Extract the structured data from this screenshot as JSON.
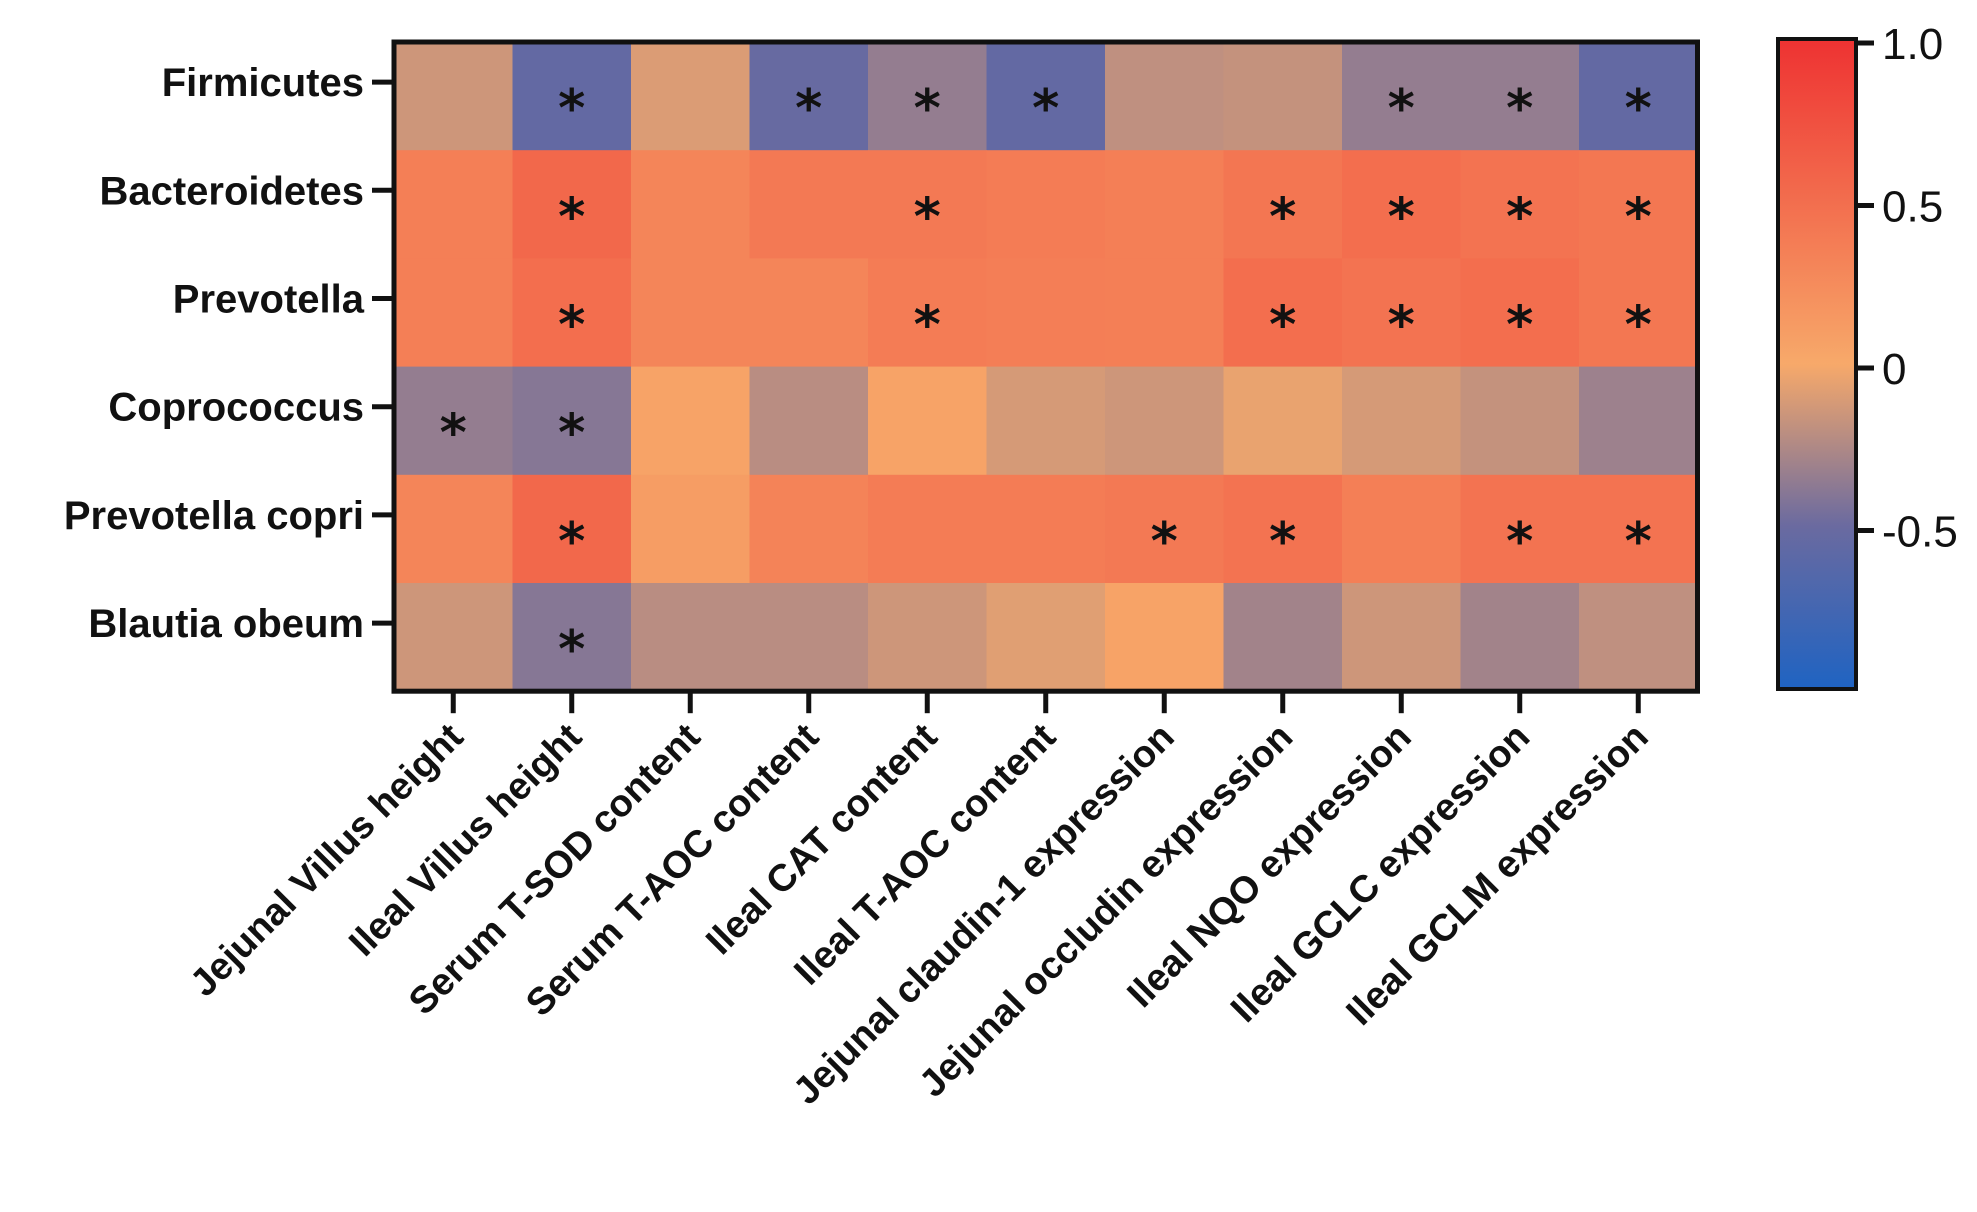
{
  "chart_data": {
    "type": "heatmap",
    "rows": [
      "Firmicutes",
      "Bacteroidetes",
      "Prevotella",
      "Coprococcus",
      "Prevotella copri",
      "Blautia obeum"
    ],
    "columns": [
      "Jejunal Villus height",
      "Ileal Villus height",
      "Serum T-SOD content",
      "Serum T-AOC content",
      "Ileal CAT content",
      "Ileal T-AOC content",
      "Jejunal claudin-1 expression",
      "Jejunal occludin expression",
      "Ileal NQO expression",
      "Ileal GCLC expression",
      "Ileal GCLM expression"
    ],
    "values": [
      [
        -0.15,
        -0.55,
        -0.1,
        -0.52,
        -0.35,
        -0.55,
        -0.2,
        -0.18,
        -0.35,
        -0.35,
        -0.55
      ],
      [
        0.35,
        0.55,
        0.3,
        0.4,
        0.4,
        0.38,
        0.35,
        0.43,
        0.5,
        0.45,
        0.42
      ],
      [
        0.35,
        0.5,
        0.3,
        0.3,
        0.38,
        0.36,
        0.35,
        0.5,
        0.45,
        0.5,
        0.42
      ],
      [
        -0.35,
        -0.4,
        0.05,
        -0.22,
        0.05,
        -0.12,
        -0.15,
        -0.05,
        -0.12,
        -0.18,
        -0.32
      ],
      [
        0.3,
        0.55,
        0.1,
        0.32,
        0.38,
        0.38,
        0.4,
        0.45,
        0.35,
        0.45,
        0.45
      ],
      [
        -0.15,
        -0.4,
        -0.22,
        -0.22,
        -0.15,
        -0.08,
        0.05,
        -0.3,
        -0.15,
        -0.3,
        -0.2
      ]
    ],
    "significant": [
      [
        false,
        true,
        false,
        true,
        true,
        true,
        false,
        false,
        true,
        true,
        true
      ],
      [
        false,
        true,
        false,
        false,
        true,
        false,
        false,
        true,
        true,
        true,
        true
      ],
      [
        false,
        true,
        false,
        false,
        true,
        false,
        false,
        true,
        true,
        true,
        true
      ],
      [
        true,
        true,
        false,
        false,
        false,
        false,
        false,
        false,
        false,
        false,
        false
      ],
      [
        false,
        true,
        false,
        false,
        false,
        false,
        true,
        true,
        false,
        true,
        true
      ],
      [
        false,
        true,
        false,
        false,
        false,
        false,
        false,
        false,
        false,
        false,
        false
      ]
    ],
    "significance_marker": "*",
    "colorbar": {
      "min": -1.0,
      "max": 1.0,
      "ticks": [
        1.0,
        0.5,
        0,
        -0.5
      ],
      "tick_labels": [
        "1.0",
        "0.5",
        "0",
        "-0.5"
      ],
      "colors": {
        "min": "#1f63c2",
        "neutral": "#f7a96a",
        "max": "#ee3232",
        "lower_mid": "#6a6aa0"
      }
    }
  }
}
